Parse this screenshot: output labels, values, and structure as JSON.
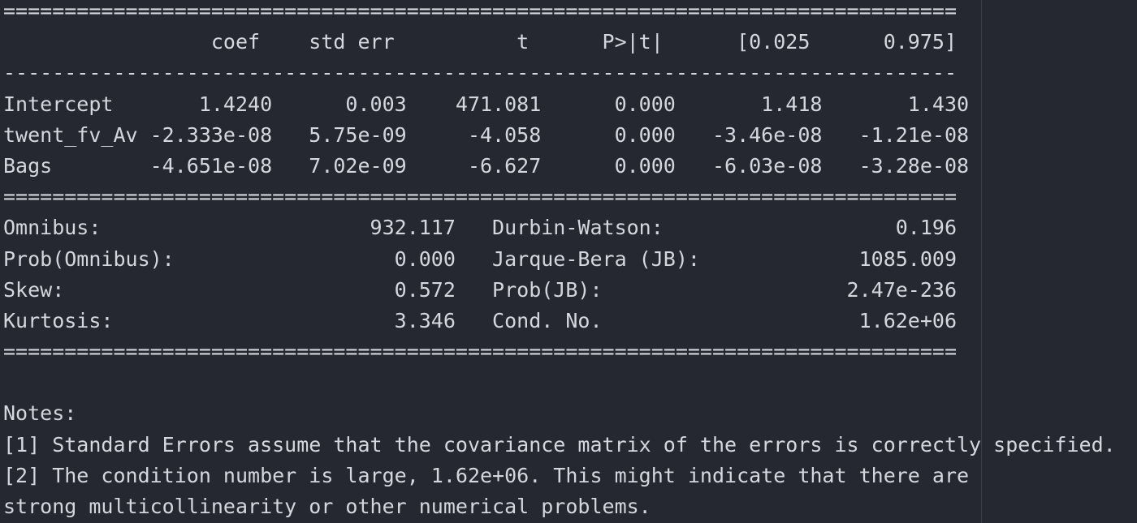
{
  "lines": [
    "==============================================================================",
    "                 coef    std err          t      P>|t|      [0.025      0.975]",
    "------------------------------------------------------------------------------",
    "Intercept       1.4240      0.003    471.081      0.000       1.418       1.430",
    "twent_fv_Av -2.333e-08   5.75e-09     -4.058      0.000   -3.46e-08   -1.21e-08",
    "Bags        -4.651e-08   7.02e-09     -6.627      0.000   -6.03e-08   -3.28e-08",
    "==============================================================================",
    "Omnibus:                      932.117   Durbin-Watson:                   0.196",
    "Prob(Omnibus):                  0.000   Jarque-Bera (JB):             1085.009",
    "Skew:                           0.572   Prob(JB):                    2.47e-236",
    "Kurtosis:                       3.346   Cond. No.                     1.62e+06",
    "==============================================================================",
    "",
    "Notes:",
    "[1] Standard Errors assume that the covariance matrix of the errors is correctly specified.",
    "[2] The condition number is large, 1.62e+06. This might indicate that there are",
    "strong multicollinearity or other numerical problems."
  ]
}
